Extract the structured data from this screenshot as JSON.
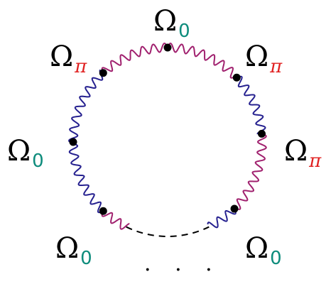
{
  "colors": {
    "purple_wave": "#a0206e",
    "blue_wave": "#25208f",
    "sub_zero": "#0e8c7c",
    "sub_pi": "#e02020",
    "node": "#000000",
    "gap": "#000000"
  },
  "labels": {
    "top": {
      "symbol": "Ω",
      "sub": "0"
    },
    "upper_left": {
      "symbol": "Ω",
      "sub": "π"
    },
    "upper_right": {
      "symbol": "Ω",
      "sub": "π"
    },
    "left": {
      "symbol": "Ω",
      "sub": "0"
    },
    "right": {
      "symbol": "Ω",
      "sub": "π"
    },
    "lower_left": {
      "symbol": "Ω",
      "sub": "0"
    },
    "lower_right": {
      "symbol": "Ω",
      "sub": "0"
    }
  },
  "ellipsis": "· · ·"
}
